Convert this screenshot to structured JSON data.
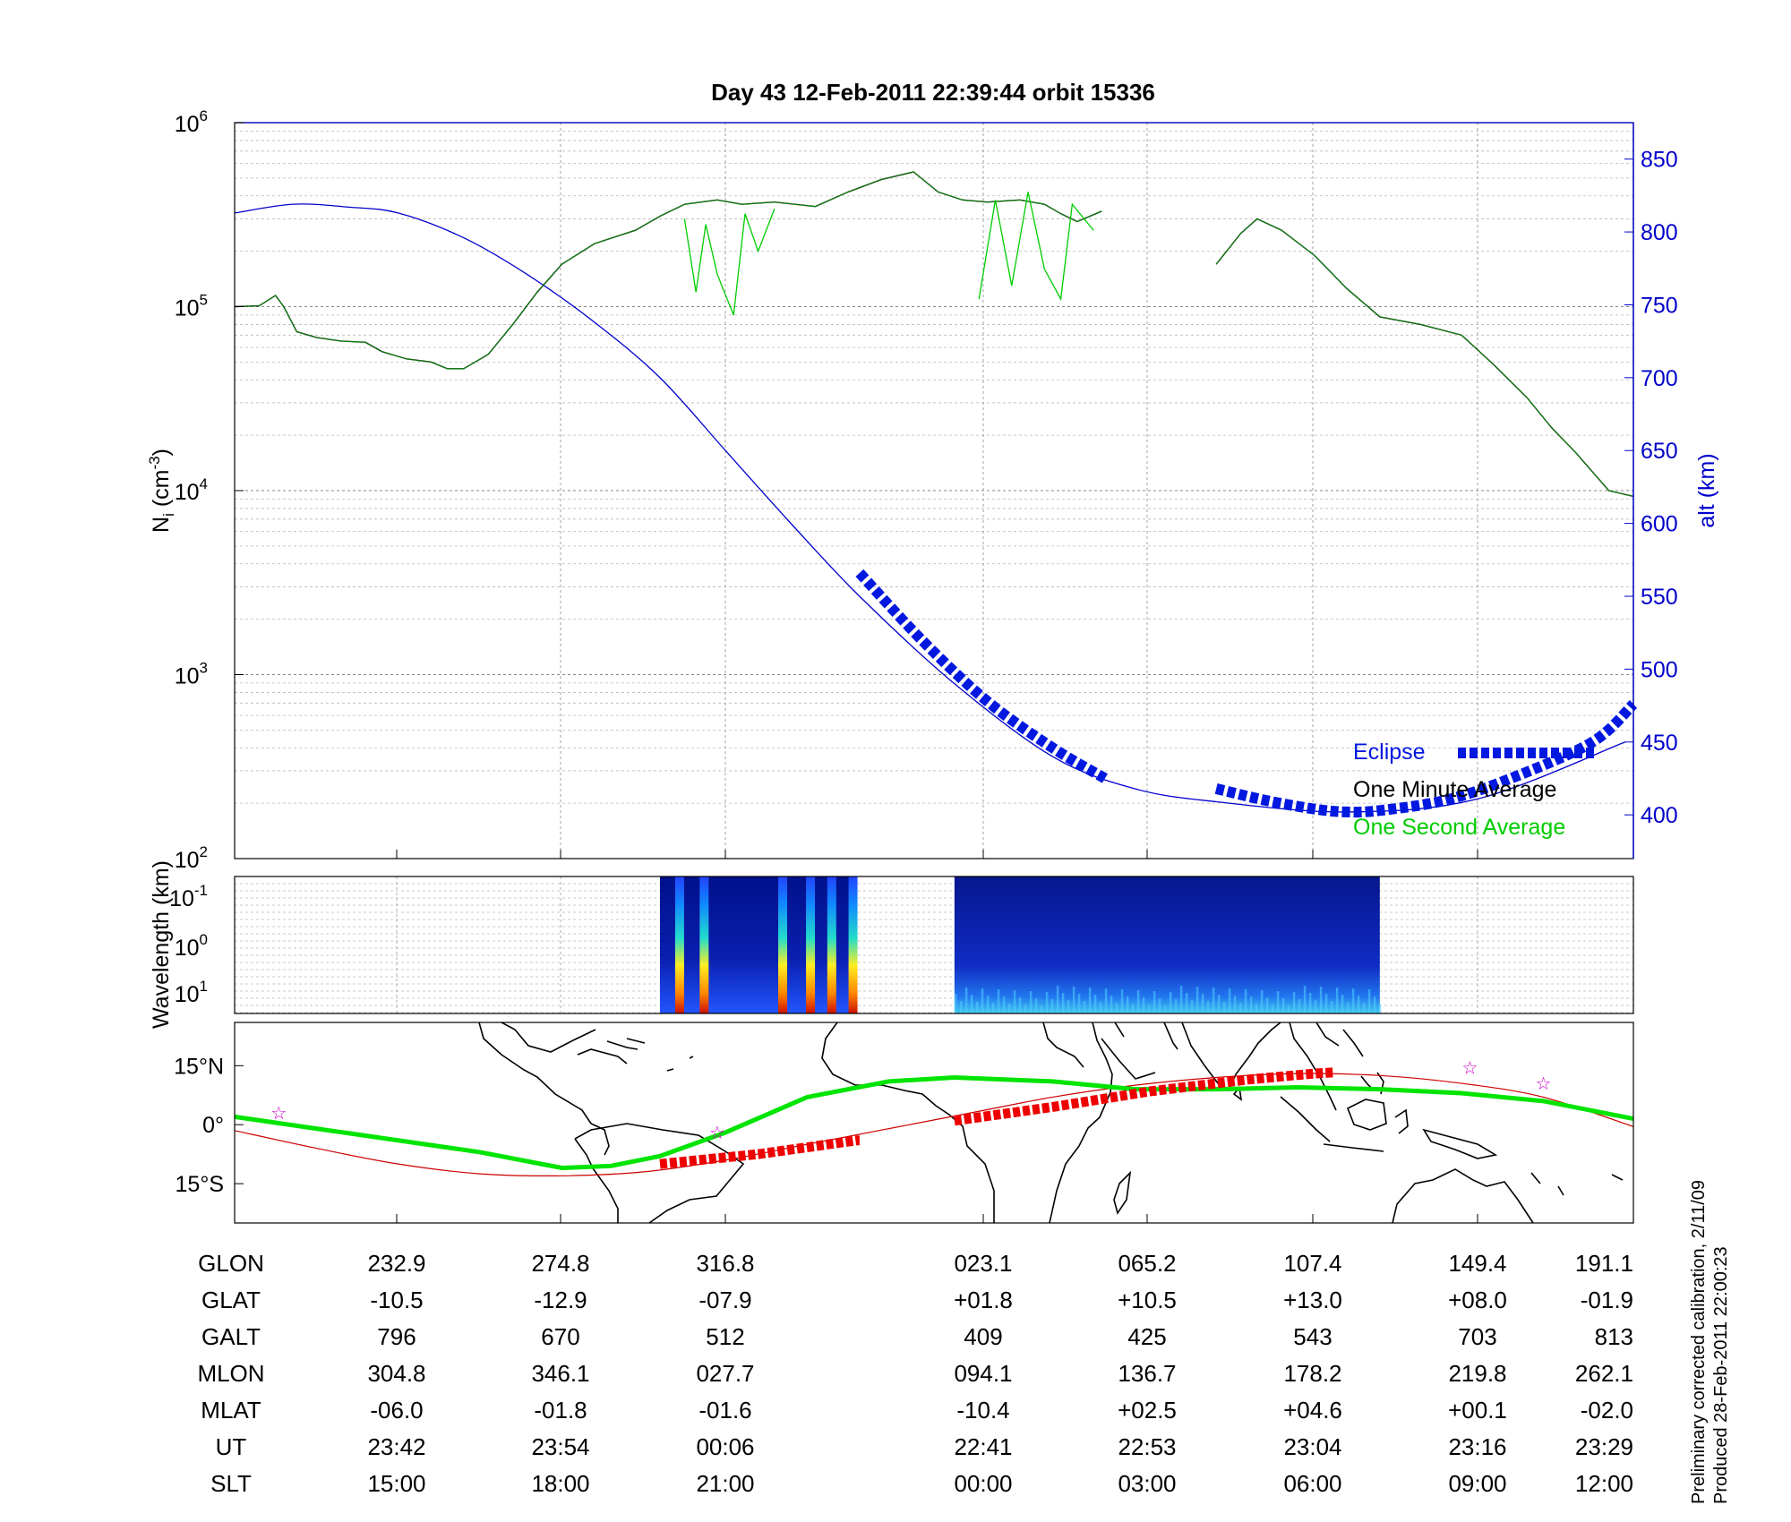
{
  "title": "Day 43  12-Feb-2011 22:39:44   orbit 15336",
  "colors": {
    "altitude": "#0000cc",
    "eclipse": "#0018e0",
    "minute_avg": "#000000",
    "second_avg": "#00cc00",
    "map_track": "#00e400",
    "map_eclipse": "#ee0000",
    "magnetic_equator": "#cc0000",
    "stars": "#cc00cc"
  },
  "chart_data": [
    {
      "type": "line",
      "panel": "density",
      "ylabel_left": "N_i (cm^-3)",
      "ylabel_right": "alt (km)",
      "y_scale": "log",
      "ylim": [
        100,
        1000000
      ],
      "y_ticks": [
        {
          "base": "10",
          "exp": "2",
          "value": 100
        },
        {
          "base": "10",
          "exp": "3",
          "value": 1000
        },
        {
          "base": "10",
          "exp": "4",
          "value": 10000
        },
        {
          "base": "10",
          "exp": "5",
          "value": 100000
        },
        {
          "base": "10",
          "exp": "6",
          "value": 1000000
        }
      ],
      "y2lim": [
        370,
        875
      ],
      "y2_ticks": [
        "400",
        "450",
        "500",
        "550",
        "600",
        "650",
        "700",
        "750",
        "800",
        "850"
      ],
      "x_range": [
        0,
        8.55
      ],
      "legend": [
        "Eclipse",
        "One Minute Average",
        "One Second Average"
      ],
      "legend_position": "bottom-right",
      "grid": true,
      "series": [
        {
          "name": "One Minute Average",
          "segments": [
            [
              [
                0,
                100000
              ],
              [
                0.15,
                101000
              ],
              [
                0.25,
                115000
              ],
              [
                0.3,
                100000
              ],
              [
                0.38,
                73000
              ],
              [
                0.5,
                68000
              ],
              [
                0.65,
                65000
              ],
              [
                0.8,
                64000
              ],
              [
                0.9,
                57000
              ],
              [
                1.05,
                52000
              ],
              [
                1.2,
                50000
              ],
              [
                1.3,
                46000
              ],
              [
                1.4,
                46000
              ],
              [
                1.55,
                55000
              ],
              [
                1.7,
                80000
              ],
              [
                1.85,
                120000
              ],
              [
                2.0,
                170000
              ],
              [
                2.2,
                220000
              ],
              [
                2.45,
                260000
              ],
              [
                2.6,
                310000
              ],
              [
                2.75,
                360000
              ],
              [
                2.95,
                380000
              ],
              [
                3.1,
                360000
              ],
              [
                3.3,
                370000
              ],
              [
                3.55,
                350000
              ],
              [
                3.75,
                420000
              ],
              [
                3.95,
                490000
              ],
              [
                4.15,
                540000
              ],
              [
                4.3,
                420000
              ],
              [
                4.45,
                380000
              ],
              [
                4.6,
                370000
              ],
              [
                4.8,
                380000
              ],
              [
                4.95,
                360000
              ],
              [
                5.05,
                320000
              ],
              [
                5.15,
                290000
              ],
              [
                5.3,
                330000
              ]
            ],
            [
              [
                6.0,
                170000
              ],
              [
                6.15,
                250000
              ],
              [
                6.25,
                300000
              ],
              [
                6.4,
                260000
              ],
              [
                6.6,
                190000
              ],
              [
                6.8,
                125000
              ],
              [
                7.0,
                88000
              ],
              [
                7.25,
                80000
              ],
              [
                7.5,
                70000
              ],
              [
                7.7,
                48000
              ],
              [
                7.9,
                32000
              ],
              [
                8.05,
                22000
              ],
              [
                8.2,
                16000
              ],
              [
                8.4,
                10000
              ],
              [
                8.55,
                9300
              ]
            ]
          ]
        },
        {
          "name": "One Second Average",
          "segments": [
            [
              [
                2.75,
                300000
              ],
              [
                2.82,
                120000
              ],
              [
                2.88,
                280000
              ],
              [
                2.95,
                150000
              ],
              [
                3.05,
                90000
              ],
              [
                3.12,
                320000
              ],
              [
                3.2,
                200000
              ],
              [
                3.3,
                340000
              ]
            ],
            [
              [
                4.55,
                110000
              ],
              [
                4.65,
                380000
              ],
              [
                4.75,
                130000
              ],
              [
                4.85,
                420000
              ],
              [
                4.95,
                160000
              ],
              [
                5.05,
                110000
              ],
              [
                5.12,
                360000
              ],
              [
                5.25,
                260000
              ]
            ]
          ]
        },
        {
          "name": "alt (km)",
          "axis": "right",
          "x": [
            0,
            0.36,
            0.7,
            1.0,
            1.4,
            1.8,
            2.2,
            2.6,
            3.0,
            3.4,
            3.82,
            4.4,
            5.0,
            5.5,
            6.0,
            6.8,
            7.6,
            8.5
          ],
          "values": [
            813,
            819,
            817,
            813,
            796,
            770,
            738,
            700,
            650,
            600,
            550,
            490,
            440,
            418,
            409,
            402,
            411,
            450
          ]
        }
      ],
      "eclipse_segments": [
        [
          [
            3.82,
            566
          ],
          [
            4.2,
            520
          ],
          [
            4.6,
            478
          ],
          [
            5.0,
            446
          ],
          [
            5.32,
            425
          ]
        ],
        [
          [
            6.0,
            418
          ],
          [
            6.3,
            410
          ],
          [
            6.6,
            404
          ],
          [
            6.8,
            402
          ],
          [
            7.0,
            403
          ],
          [
            7.4,
            410
          ],
          [
            7.8,
            425
          ],
          [
            8.3,
            450
          ],
          [
            8.55,
            476
          ]
        ]
      ],
      "x_ticks_right_panel": [
        {
          "x": 0,
          "alt": 409
        },
        {
          "x": 1.0,
          "alt": 425
        },
        {
          "x": 2.0,
          "alt": 543
        },
        {
          "x": 3.0,
          "alt": 703
        },
        {
          "x": 4.0,
          "alt": 813
        }
      ]
    },
    {
      "type": "heatmap",
      "panel": "spectrogram",
      "ylabel": "Wavelength (km)",
      "y_ticks": [
        {
          "base": "10",
          "exp": "-1"
        },
        {
          "base": "10",
          "exp": "0"
        },
        {
          "base": "10",
          "exp": "1"
        }
      ],
      "blocks": [
        {
          "x_start": 2.6,
          "x_end": 3.8,
          "intensity": "high",
          "bursts": [
            2.72,
            2.87,
            3.35,
            3.52,
            3.65,
            3.78
          ]
        },
        {
          "x_start": 4.4,
          "x_end": 7.0,
          "intensity": "low"
        }
      ]
    },
    {
      "type": "line",
      "panel": "map",
      "lat_ticks": [
        "15°N",
        "0°",
        "15°S"
      ],
      "lat_tick_values": [
        15,
        0,
        -15
      ],
      "ylim": [
        -25,
        26
      ],
      "series": [
        {
          "name": "GLAT",
          "x": [
            0,
            0.5,
            1.0,
            1.5,
            2.0,
            2.3,
            2.6,
            3.0,
            3.5,
            4.0,
            4.4,
            5.0,
            5.5,
            6.0,
            6.5,
            7.0,
            7.5,
            8.0,
            8.55
          ],
          "values": [
            2,
            -1,
            -4,
            -7,
            -11,
            -10.5,
            -8,
            -2,
            7,
            11,
            12,
            11,
            9,
            9,
            9.5,
            9,
            8,
            6,
            1.5
          ]
        },
        {
          "name": "magnetic_equator",
          "x": [
            0,
            0.5,
            1.0,
            1.5,
            2.0,
            2.5,
            3.0,
            3.5,
            4.0,
            4.5,
            5.0,
            5.5,
            6.0,
            6.5,
            7.0,
            7.5,
            8.0,
            8.55
          ],
          "values": [
            -1.5,
            -6,
            -10,
            -12.5,
            -13,
            -12,
            -9,
            -5,
            -1,
            3,
            7,
            10,
            12,
            13,
            12.5,
            10.5,
            7,
            -0.5
          ]
        }
      ],
      "eclipse_track": [
        [
          [
            2.6,
            -10
          ],
          [
            3.2,
            -7.5
          ],
          [
            3.8,
            -4
          ],
          [
            3.82,
            -4
          ]
        ],
        [
          [
            4.4,
            1
          ],
          [
            5.0,
            4.5
          ],
          [
            5.6,
            8.5
          ],
          [
            6.2,
            11.5
          ],
          [
            6.6,
            13
          ],
          [
            6.72,
            13.3
          ]
        ]
      ],
      "stars": [
        [
          0.27,
          3
        ],
        [
          2.95,
          -2
        ],
        [
          7.55,
          14.5
        ],
        [
          8.0,
          10.5
        ]
      ]
    }
  ],
  "table": {
    "labels": [
      "GLON",
      "GLAT",
      "GALT",
      "MLON",
      "MLAT",
      "UT",
      "SLT"
    ],
    "columns": [
      [
        "232.9",
        "-10.5",
        "796",
        "304.8",
        "-06.0",
        "23:42",
        "15:00"
      ],
      [
        "274.8",
        "-12.9",
        "670",
        "346.1",
        "-01.8",
        "23:54",
        "18:00"
      ],
      [
        "316.8",
        "-07.9",
        "512",
        "027.7",
        "-01.6",
        "00:06",
        "21:00"
      ],
      [
        "023.1",
        "+01.8",
        "409",
        "094.1",
        "-10.4",
        "22:41",
        "00:00"
      ],
      [
        "065.2",
        "+10.5",
        "425",
        "136.7",
        "+02.5",
        "22:53",
        "03:00"
      ],
      [
        "107.4",
        "+13.0",
        "543",
        "178.2",
        "+04.6",
        "23:04",
        "06:00"
      ],
      [
        "149.4",
        "+08.0",
        "703",
        "219.8",
        "+00.1",
        "23:16",
        "09:00"
      ],
      [
        "191.1",
        "-01.9",
        "813",
        "262.1",
        "-02.0",
        "23:29",
        "12:00"
      ]
    ]
  },
  "side_notes": {
    "calibration": "Preliminary corrected calibration, 2/11/09",
    "produced": "Produced 28-Feb-2011 22:00:23"
  },
  "legend": {
    "eclipse": "Eclipse",
    "minute": "One Minute Average",
    "second": "One Second Average"
  }
}
